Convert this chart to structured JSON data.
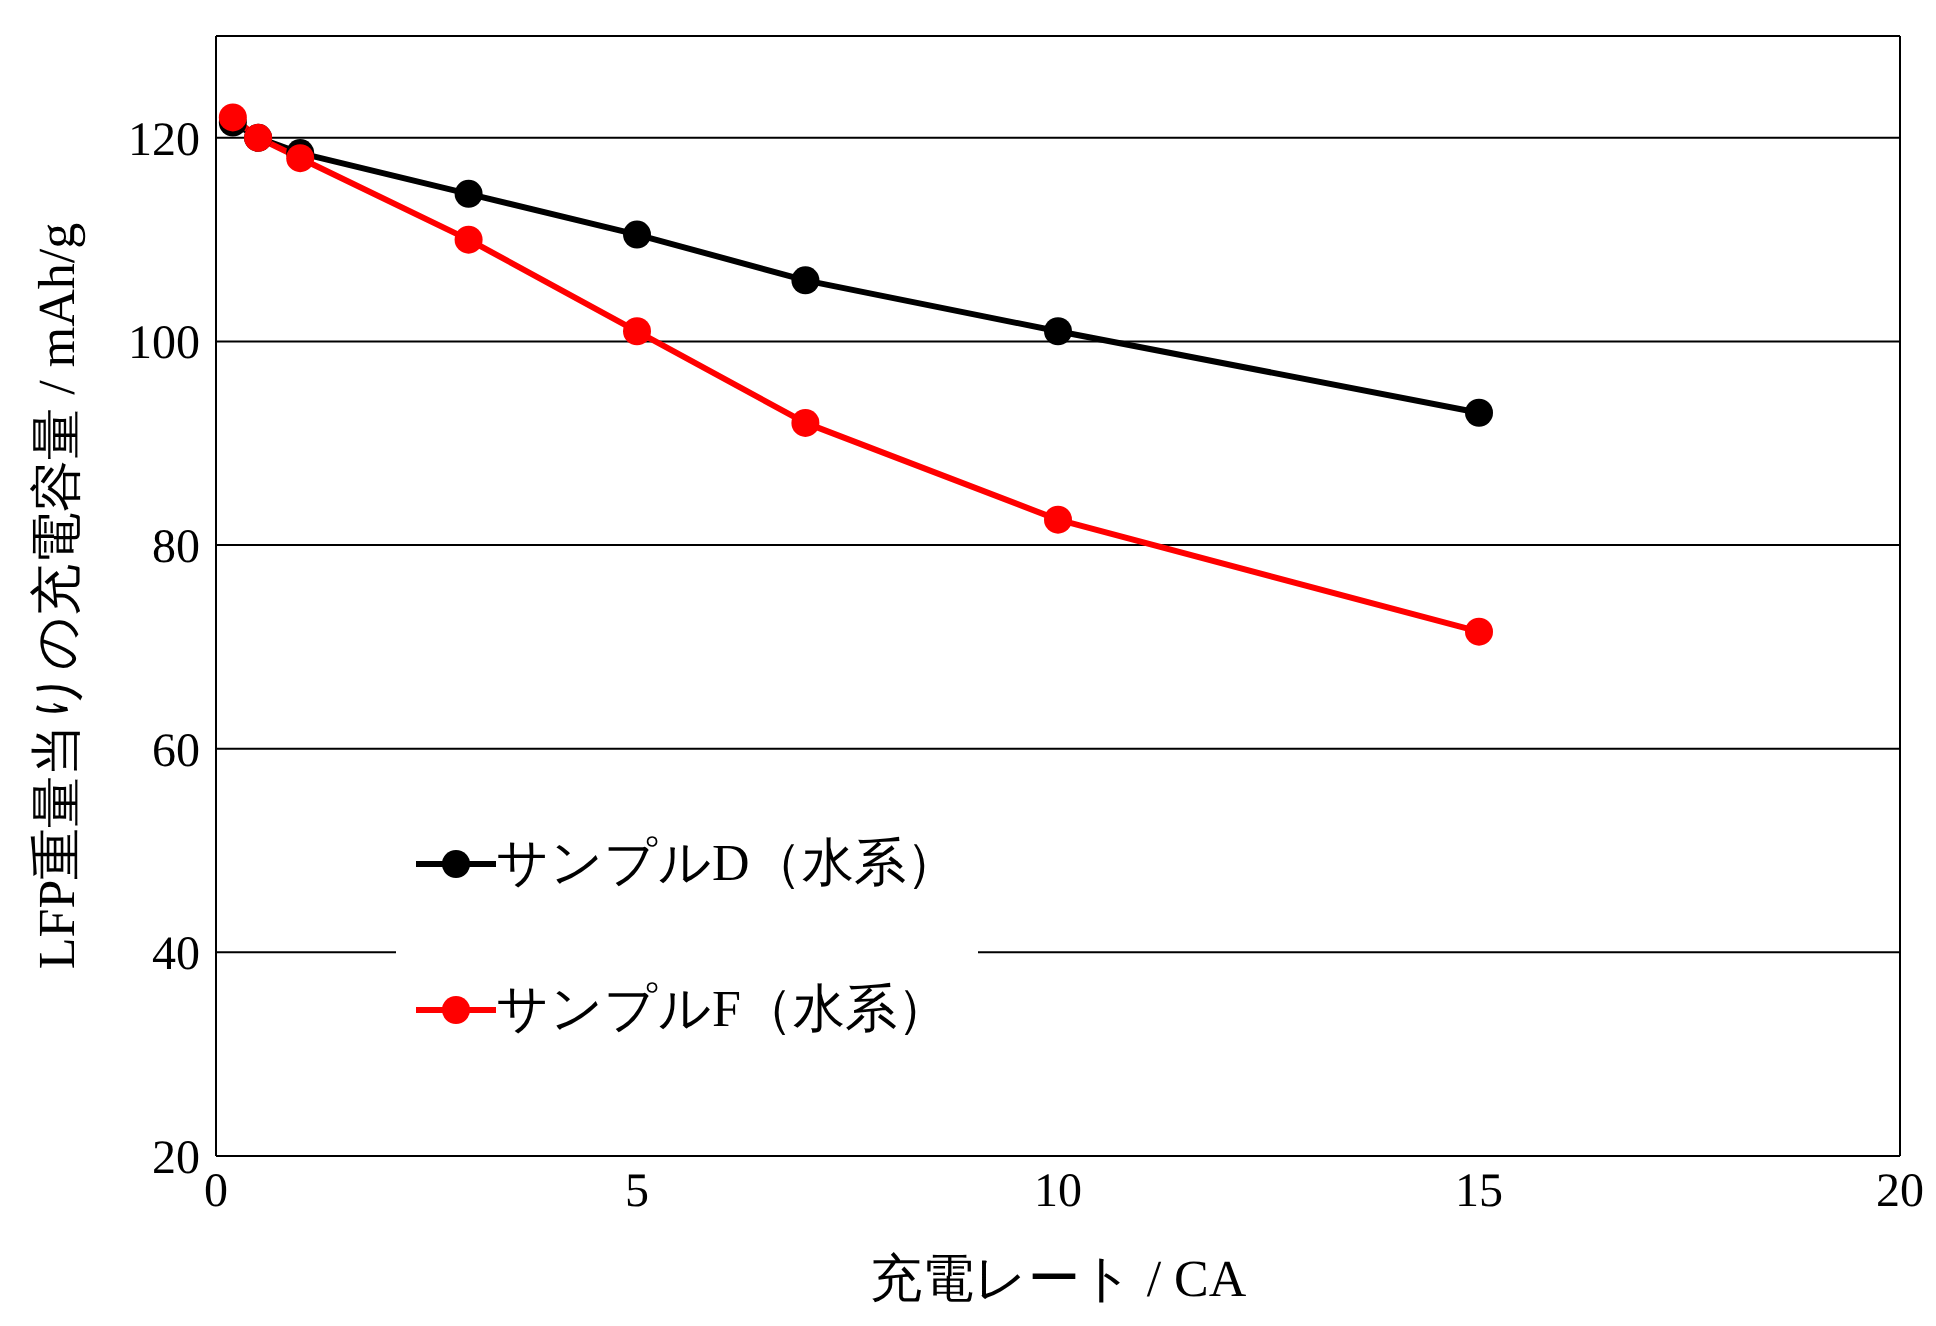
{
  "chart_data": {
    "type": "line",
    "xlabel": "充電レート / CA",
    "ylabel": "LFP重量当りの充電容量 / mAh/g",
    "x": [
      0.2,
      0.5,
      1,
      3,
      5,
      7,
      10,
      15
    ],
    "series": [
      {
        "name": "サンプルD（水系）",
        "color": "#000000",
        "values": [
          121.5,
          120,
          118.5,
          114.5,
          110.5,
          106,
          101,
          93
        ]
      },
      {
        "name": "サンプルF（水系）",
        "color": "#ff0000",
        "values": [
          122,
          120,
          118,
          110,
          101,
          92,
          82.5,
          71.5
        ]
      }
    ],
    "xlim": [
      0,
      20
    ],
    "xticks": [
      0,
      5,
      10,
      15,
      20
    ],
    "ylim": [
      20,
      130
    ],
    "yticks": [
      20,
      40,
      60,
      80,
      100,
      120
    ],
    "grid": "y",
    "legend": "left",
    "marker": "circle",
    "line_style": "solid"
  }
}
